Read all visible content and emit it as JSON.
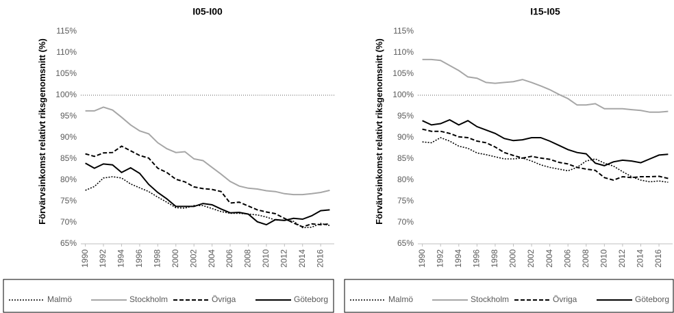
{
  "chart_data": [
    {
      "type": "line",
      "title": "I05-I00",
      "ylabel": "Förvärvsinkomst relativt riksgenomsnitt (%)",
      "x": [
        1990,
        1991,
        1992,
        1993,
        1994,
        1995,
        1996,
        1997,
        1998,
        1999,
        2000,
        2001,
        2002,
        2003,
        2004,
        2005,
        2006,
        2007,
        2008,
        2009,
        2010,
        2011,
        2012,
        2013,
        2014,
        2015,
        2016,
        2017
      ],
      "xlim": [
        1989.5,
        2017.5
      ],
      "xticks": [
        1990,
        1992,
        1994,
        1996,
        1998,
        2000,
        2002,
        2004,
        2006,
        2008,
        2010,
        2012,
        2014,
        2016
      ],
      "ylim": [
        65,
        115
      ],
      "yticks": [
        {
          "value": 65,
          "label": "65%"
        },
        {
          "value": 70,
          "label": "70%"
        },
        {
          "value": 75,
          "label": "75%"
        },
        {
          "value": 80,
          "label": "80%"
        },
        {
          "value": 85,
          "label": "85%"
        },
        {
          "value": 90,
          "label": "90%"
        },
        {
          "value": 95,
          "label": "95%"
        },
        {
          "value": 100,
          "label": "100%"
        },
        {
          "value": 105,
          "label": "105%"
        },
        {
          "value": 110,
          "label": "110%"
        },
        {
          "value": 115,
          "label": "115%"
        }
      ],
      "reference_line": 100,
      "series": [
        {
          "name": "Malmö",
          "color": "#000000",
          "dash": "dotted",
          "values": [
            77.6,
            78.5,
            80.5,
            80.8,
            80.5,
            79.1,
            78.2,
            77.3,
            76.0,
            74.8,
            73.5,
            73.4,
            74.0,
            74.0,
            73.3,
            72.6,
            72.2,
            72.2,
            72.0,
            71.8,
            71.3,
            70.6,
            70.6,
            70.3,
            68.8,
            68.9,
            69.8,
            69.3
          ]
        },
        {
          "name": "Stockholm",
          "color": "#a6a6a6",
          "dash": "solid",
          "values": [
            96.3,
            96.3,
            97.2,
            96.5,
            94.8,
            93.0,
            91.6,
            90.9,
            88.8,
            87.4,
            86.5,
            86.7,
            85.0,
            84.6,
            83.0,
            81.4,
            79.7,
            78.6,
            78.1,
            77.9,
            77.5,
            77.3,
            76.8,
            76.6,
            76.6,
            76.8,
            77.1,
            77.6
          ]
        },
        {
          "name": "Övriga",
          "color": "#000000",
          "dash": "dashed",
          "values": [
            86.2,
            85.6,
            86.4,
            86.5,
            88.0,
            86.9,
            85.8,
            85.2,
            82.8,
            81.8,
            80.2,
            79.6,
            78.4,
            78.0,
            77.8,
            77.3,
            74.6,
            74.8,
            73.9,
            73.0,
            72.5,
            72.1,
            71.0,
            69.9,
            69.0,
            69.7,
            69.5,
            69.7
          ]
        },
        {
          "name": "Göteborg",
          "color": "#000000",
          "dash": "solid",
          "values": [
            84.0,
            82.8,
            83.8,
            83.6,
            81.8,
            82.9,
            81.6,
            79.0,
            77.1,
            75.6,
            73.8,
            73.8,
            73.8,
            74.5,
            74.2,
            73.2,
            72.3,
            72.4,
            72.0,
            70.2,
            69.5,
            70.7,
            70.5,
            71.0,
            70.8,
            71.6,
            72.8,
            73.0
          ]
        }
      ]
    },
    {
      "type": "line",
      "title": "I15-I05",
      "ylabel": "Förvärvsinkomst relativt riksgenomsnitt (%)",
      "x": [
        1990,
        1991,
        1992,
        1993,
        1994,
        1995,
        1996,
        1997,
        1998,
        1999,
        2000,
        2001,
        2002,
        2003,
        2004,
        2005,
        2006,
        2007,
        2008,
        2009,
        2010,
        2011,
        2012,
        2013,
        2014,
        2015,
        2016,
        2017
      ],
      "xlim": [
        1989.5,
        2017.5
      ],
      "xticks": [
        1990,
        1992,
        1994,
        1996,
        1998,
        2000,
        2002,
        2004,
        2006,
        2008,
        2010,
        2012,
        2014,
        2016
      ],
      "ylim": [
        65,
        115
      ],
      "yticks": [
        {
          "value": 65,
          "label": "65%"
        },
        {
          "value": 70,
          "label": "70%"
        },
        {
          "value": 75,
          "label": "75%"
        },
        {
          "value": 80,
          "label": "80%"
        },
        {
          "value": 85,
          "label": "85%"
        },
        {
          "value": 90,
          "label": "90%"
        },
        {
          "value": 95,
          "label": "95%"
        },
        {
          "value": 100,
          "label": "100%"
        },
        {
          "value": 105,
          "label": "105%"
        },
        {
          "value": 110,
          "label": "110%"
        },
        {
          "value": 115,
          "label": "115%"
        }
      ],
      "reference_line": 100,
      "series": [
        {
          "name": "Malmö",
          "color": "#000000",
          "dash": "dotted",
          "values": [
            89.0,
            88.8,
            90.0,
            89.2,
            88.0,
            87.5,
            86.4,
            86.0,
            85.5,
            85.0,
            85.0,
            85.2,
            84.5,
            83.6,
            83.0,
            82.6,
            82.2,
            83.0,
            84.5,
            85.0,
            84.0,
            83.3,
            82.0,
            80.8,
            80.0,
            79.6,
            79.8,
            79.5
          ]
        },
        {
          "name": "Stockholm",
          "color": "#a6a6a6",
          "dash": "solid",
          "values": [
            108.4,
            108.4,
            108.2,
            107.0,
            105.8,
            104.3,
            104.0,
            103.0,
            102.8,
            103.0,
            103.2,
            103.7,
            103.0,
            102.2,
            101.3,
            100.2,
            99.2,
            97.7,
            97.7,
            98.0,
            96.8,
            96.8,
            96.8,
            96.6,
            96.4,
            96.0,
            96.0,
            96.2
          ]
        },
        {
          "name": "Övriga",
          "color": "#000000",
          "dash": "dashed",
          "values": [
            92.0,
            91.5,
            91.5,
            91.0,
            90.2,
            90.0,
            89.2,
            88.8,
            87.8,
            86.5,
            85.8,
            85.2,
            85.6,
            85.2,
            84.9,
            84.2,
            83.8,
            83.0,
            82.6,
            82.3,
            80.6,
            80.0,
            80.8,
            80.6,
            80.8,
            80.8,
            80.9,
            80.4
          ]
        },
        {
          "name": "Göteborg",
          "color": "#000000",
          "dash": "solid",
          "values": [
            94.0,
            93.0,
            93.3,
            94.2,
            93.0,
            94.0,
            92.6,
            91.8,
            91.0,
            89.8,
            89.3,
            89.5,
            90.0,
            90.0,
            89.2,
            88.2,
            87.2,
            86.5,
            86.2,
            84.0,
            83.4,
            84.3,
            84.7,
            84.5,
            84.1,
            85.0,
            85.9,
            86.1
          ]
        }
      ]
    }
  ]
}
